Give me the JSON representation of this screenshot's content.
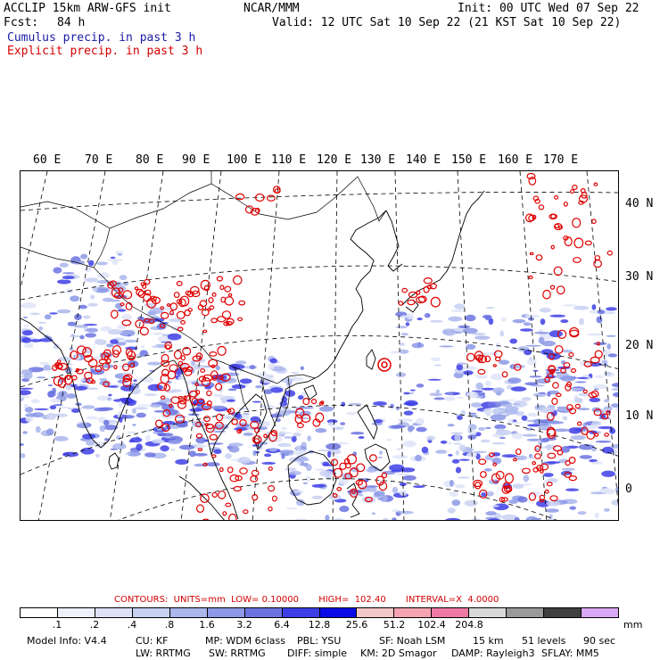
{
  "header": {
    "model": "ACCLIP 15km ARW-GFS init",
    "org": "NCAR/MMM",
    "init": "Init: 00 UTC Wed 07 Sep 22",
    "fcst_label": "Fcst:",
    "fcst_value": "84 h",
    "valid": "Valid: 12 UTC Sat 10 Sep 22 (21 KST Sat 10 Sep 22)",
    "cumulus": "Cumulus precip. in past 3 h",
    "explicit": "Explicit precip. in past 3 h"
  },
  "map": {
    "lon_labels": [
      "60 E",
      "70 E",
      "80 E",
      "90 E",
      "100 E",
      "110 E",
      "120 E",
      "130 E",
      "140 E",
      "150 E",
      "160 E",
      "170 E"
    ],
    "lat_labels": [
      "40 N",
      "30 N",
      "20 N",
      "10 N",
      "0"
    ]
  },
  "contours": {
    "text": "CONTOURS:  UNITS=mm  LOW= 0.10000       HIGH=  102.40       INTERVAL=X  4.0000"
  },
  "colorbar": {
    "colors": [
      "#ffffff",
      "#eef0fb",
      "#dde2f7",
      "#c9d1f2",
      "#aab6ec",
      "#8c99e6",
      "#6b73e0",
      "#3e3ee6",
      "#0a0ae6",
      "#f4c8c8",
      "#f5a3b0",
      "#ee7aa4",
      "#d9d9d9",
      "#9a9a9a",
      "#404040",
      "#d9a9f5"
    ],
    "labels": [
      ".1",
      ".2",
      ".4",
      ".8",
      "1.6",
      "3.2",
      "6.4",
      "12.8",
      "25.6",
      "51.2",
      "102.4",
      "204.8"
    ],
    "unit": "mm"
  },
  "model_info": {
    "line1": [
      "Model Info: V4.4",
      "CU: KF",
      "MP: WDM 6class",
      "PBL: YSU",
      "SF: Noah LSM",
      "15 km",
      "51 levels",
      "90 sec"
    ],
    "line2": [
      "LW: RRTMG",
      "SW: RRTMG",
      "DIFF: simple",
      "KM: 2D Smagor",
      "DAMP: Rayleigh3",
      "SFLAY: MM5"
    ]
  }
}
